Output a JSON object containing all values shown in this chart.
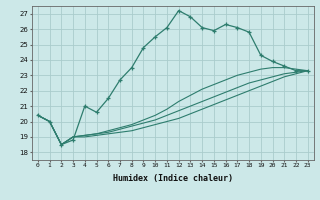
{
  "xlabel": "Humidex (Indice chaleur)",
  "bg_color": "#cce8e8",
  "grid_color": "#aacccc",
  "line_color": "#2e7d6e",
  "xlim": [
    -0.5,
    23.5
  ],
  "ylim": [
    17.5,
    27.5
  ],
  "xticks": [
    0,
    1,
    2,
    3,
    4,
    5,
    6,
    7,
    8,
    9,
    10,
    11,
    12,
    13,
    14,
    15,
    16,
    17,
    18,
    19,
    20,
    21,
    22,
    23
  ],
  "yticks": [
    18,
    19,
    20,
    21,
    22,
    23,
    24,
    25,
    26,
    27
  ],
  "series": [
    [
      20.4,
      20.0,
      18.5,
      18.8,
      21.0,
      20.6,
      21.5,
      22.7,
      23.5,
      24.8,
      25.5,
      26.1,
      27.2,
      26.8,
      26.1,
      25.9,
      26.3,
      26.1,
      25.8,
      24.3,
      23.9,
      23.6,
      23.3,
      23.3
    ],
    [
      20.4,
      20.0,
      18.5,
      19.0,
      19.1,
      19.2,
      19.4,
      19.6,
      19.8,
      20.1,
      20.4,
      20.8,
      21.3,
      21.7,
      22.1,
      22.4,
      22.7,
      23.0,
      23.2,
      23.4,
      23.5,
      23.5,
      23.4,
      23.3
    ],
    [
      20.4,
      20.0,
      18.5,
      19.0,
      19.1,
      19.2,
      19.3,
      19.5,
      19.7,
      19.9,
      20.1,
      20.4,
      20.7,
      21.0,
      21.3,
      21.6,
      21.9,
      22.2,
      22.5,
      22.7,
      22.9,
      23.1,
      23.2,
      23.3
    ],
    [
      20.4,
      20.0,
      18.5,
      19.0,
      19.0,
      19.1,
      19.2,
      19.3,
      19.4,
      19.6,
      19.8,
      20.0,
      20.2,
      20.5,
      20.8,
      21.1,
      21.4,
      21.7,
      22.0,
      22.3,
      22.6,
      22.9,
      23.1,
      23.3
    ]
  ]
}
